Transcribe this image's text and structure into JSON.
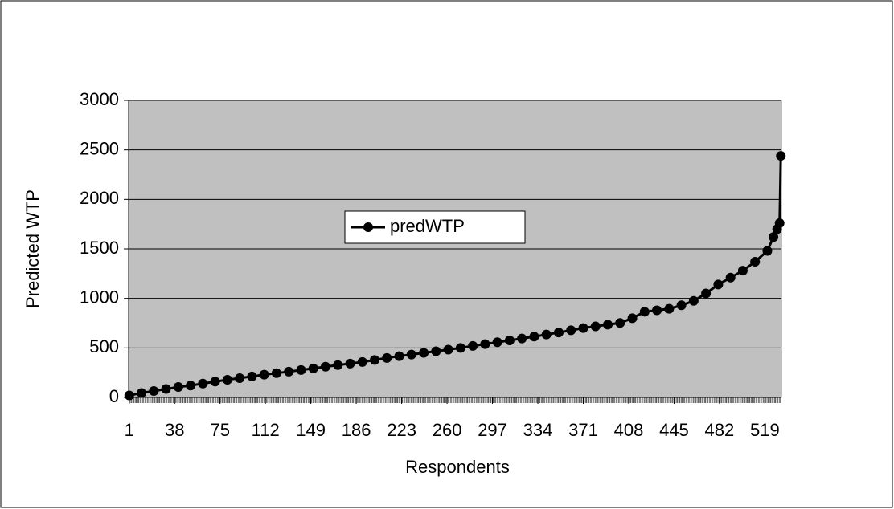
{
  "chart_data": {
    "type": "line",
    "xlabel": "Respondents",
    "ylabel": "Predicted WTP",
    "x": [
      1,
      11,
      21,
      31,
      41,
      51,
      61,
      71,
      81,
      91,
      101,
      111,
      121,
      131,
      141,
      151,
      161,
      171,
      181,
      191,
      201,
      211,
      221,
      231,
      241,
      251,
      261,
      271,
      281,
      291,
      301,
      311,
      321,
      331,
      341,
      351,
      361,
      371,
      381,
      391,
      401,
      411,
      421,
      431,
      441,
      451,
      461,
      471,
      481,
      491,
      501,
      511,
      521,
      526,
      529,
      531,
      532
    ],
    "series": [
      {
        "name": "predWTP",
        "color": "#000000",
        "values": [
          20,
          45,
          65,
          85,
          105,
          120,
          140,
          160,
          178,
          195,
          212,
          230,
          245,
          260,
          277,
          293,
          310,
          326,
          342,
          358,
          378,
          398,
          417,
          433,
          450,
          466,
          482,
          500,
          520,
          538,
          557,
          576,
          595,
          614,
          635,
          656,
          678,
          700,
          718,
          735,
          752,
          800,
          865,
          880,
          895,
          930,
          975,
          1050,
          1140,
          1210,
          1280,
          1370,
          1480,
          1620,
          1700,
          1760,
          2440
        ]
      }
    ],
    "xlim": [
      0.5,
      532.5
    ],
    "xticks": [
      1,
      38,
      75,
      112,
      149,
      186,
      223,
      260,
      297,
      334,
      371,
      408,
      445,
      482,
      519
    ],
    "ylim": [
      0,
      3000
    ],
    "yticks": [
      0,
      500,
      1000,
      1500,
      2000,
      2500,
      3000
    ],
    "grid": true,
    "plot_background": "#c0c0c0"
  }
}
